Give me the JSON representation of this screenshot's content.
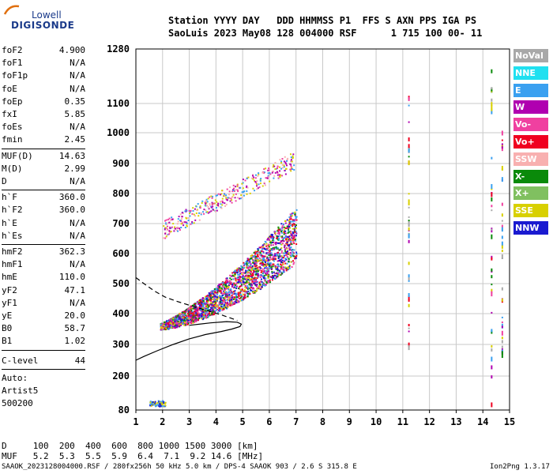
{
  "logo": {
    "top": "Lowell",
    "main": "DIGISONDE"
  },
  "header": {
    "line1": "Station YYYY DAY   DDD HHMMSS P1  FFS S AXN PPS IGA PS",
    "line2": "SaoLuis 2023 May08 128 004000 RSF      1 715 100 00- 11"
  },
  "params_a": [
    {
      "k": "foF2",
      "v": "4.900"
    },
    {
      "k": "foF1",
      "v": "N/A"
    },
    {
      "k": "foF1p",
      "v": "N/A"
    },
    {
      "k": "foE",
      "v": "N/A"
    },
    {
      "k": "foEp",
      "v": "0.35"
    },
    {
      "k": "fxI",
      "v": "5.85"
    },
    {
      "k": "foEs",
      "v": "N/A"
    },
    {
      "k": "fmin",
      "v": "2.45"
    }
  ],
  "params_b": [
    {
      "k": "MUF(D)",
      "v": "14.63"
    },
    {
      "k": "M(D)",
      "v": "2.99"
    },
    {
      "k": "D",
      "v": "N/A"
    }
  ],
  "params_c": [
    {
      "k": "h`F",
      "v": "360.0"
    },
    {
      "k": "h`F2",
      "v": "360.0"
    },
    {
      "k": "h`E",
      "v": "N/A"
    },
    {
      "k": "h`Es",
      "v": "N/A"
    }
  ],
  "params_d": [
    {
      "k": "hmF2",
      "v": "362.3"
    },
    {
      "k": "hmF1",
      "v": "N/A"
    },
    {
      "k": "hmE",
      "v": "110.0"
    },
    {
      "k": "yF2",
      "v": "47.1"
    },
    {
      "k": "yF1",
      "v": "N/A"
    },
    {
      "k": "yE",
      "v": "20.0"
    },
    {
      "k": "B0",
      "v": "58.7"
    },
    {
      "k": "B1",
      "v": "1.02"
    }
  ],
  "clevel": {
    "k": "C-level",
    "v": "44"
  },
  "auto": [
    "Auto:",
    "Artist5",
    "500200"
  ],
  "legend": [
    {
      "label": "NoVal",
      "color": "#a8a8a8"
    },
    {
      "label": "NNE",
      "color": "#20e0f0"
    },
    {
      "label": "E",
      "color": "#3aa0f0"
    },
    {
      "label": "W",
      "color": "#b000b0"
    },
    {
      "label": "Vo-",
      "color": "#f040a0"
    },
    {
      "label": "Vo+",
      "color": "#f00020"
    },
    {
      "label": "SSW",
      "color": "#f8b0b0"
    },
    {
      "label": "X-",
      "color": "#0a8a0a"
    },
    {
      "label": "X+",
      "color": "#80c060"
    },
    {
      "label": "SSE",
      "color": "#d8d000"
    },
    {
      "label": "NNW",
      "color": "#1a1ad0"
    }
  ],
  "bottom": {
    "d_line": "D     100  200  400  600  800 1000 1500 3000 [km]",
    "muf_line": "MUF   5.2  5.3  5.5  5.9  6.4  7.1  9.2 14.6 [MHz]",
    "footer_left": "SAAOK_2023128004000.RSF / 280fx256h 50 kHz 5.0 km / DPS-4 SAAOK 903 / 2.6 S 315.8 E",
    "footer_right": "Ion2Png 1.3.17"
  },
  "chart_data": {
    "type": "scatter",
    "x_ticks": [
      "1",
      "2",
      "3",
      "4",
      "5",
      "6",
      "7",
      "8",
      "9",
      "10",
      "11",
      "12",
      "13",
      "14",
      "15"
    ],
    "y_ticks": [
      "80",
      "200",
      "300",
      "400",
      "500",
      "600",
      "700",
      "800",
      "900",
      "1000",
      "1100",
      "1280"
    ],
    "xlim": [
      1,
      15
    ],
    "ylim": [
      80,
      1280
    ],
    "grid": true,
    "profile_solid": [
      [
        1,
        250
      ],
      [
        1.3,
        262
      ],
      [
        1.8,
        280
      ],
      [
        2.4,
        300
      ],
      [
        3,
        318
      ],
      [
        3.6,
        332
      ],
      [
        4.2,
        342
      ],
      [
        4.6,
        350
      ],
      [
        4.9,
        358
      ],
      [
        4.95,
        366
      ],
      [
        4.8,
        372
      ],
      [
        4.4,
        374
      ],
      [
        3.8,
        370
      ],
      [
        3.0,
        362
      ]
    ],
    "profile_dashed": [
      [
        1,
        520
      ],
      [
        1.3,
        500
      ],
      [
        1.7,
        475
      ],
      [
        2.1,
        455
      ],
      [
        2.5,
        442
      ],
      [
        3.0,
        428
      ],
      [
        3.6,
        412
      ],
      [
        4.2,
        396
      ],
      [
        4.8,
        378
      ]
    ],
    "trace_clusters": [
      {
        "name": "F1-trace",
        "x": [
          1.9,
          7.0
        ],
        "y": [
          340,
          720
        ],
        "colors": [
          "#b000b0",
          "#1a1ad0",
          "#f040a0",
          "#d8d000",
          "#0a8a0a",
          "#3aa0f0",
          "#f00020"
        ]
      },
      {
        "name": "F2-multi",
        "x": [
          2.0,
          6.9
        ],
        "y": [
          680,
          960
        ],
        "colors": [
          "#b000b0",
          "#f040a0",
          "#d8d000",
          "#f8b0b0",
          "#3aa0f0"
        ]
      },
      {
        "name": "E-low",
        "x": [
          1.5,
          2.1
        ],
        "y": [
          95,
          115
        ],
        "colors": [
          "#1a1ad0",
          "#3aa0f0",
          "#d8d000"
        ]
      }
    ],
    "vertical_marks": [
      {
        "x": 11.2,
        "y": [
          285,
          1140
        ]
      },
      {
        "x": 14.3,
        "y": [
          90,
          1250
        ]
      },
      {
        "x": 14.7,
        "y": [
          270,
          1030
        ]
      }
    ]
  }
}
